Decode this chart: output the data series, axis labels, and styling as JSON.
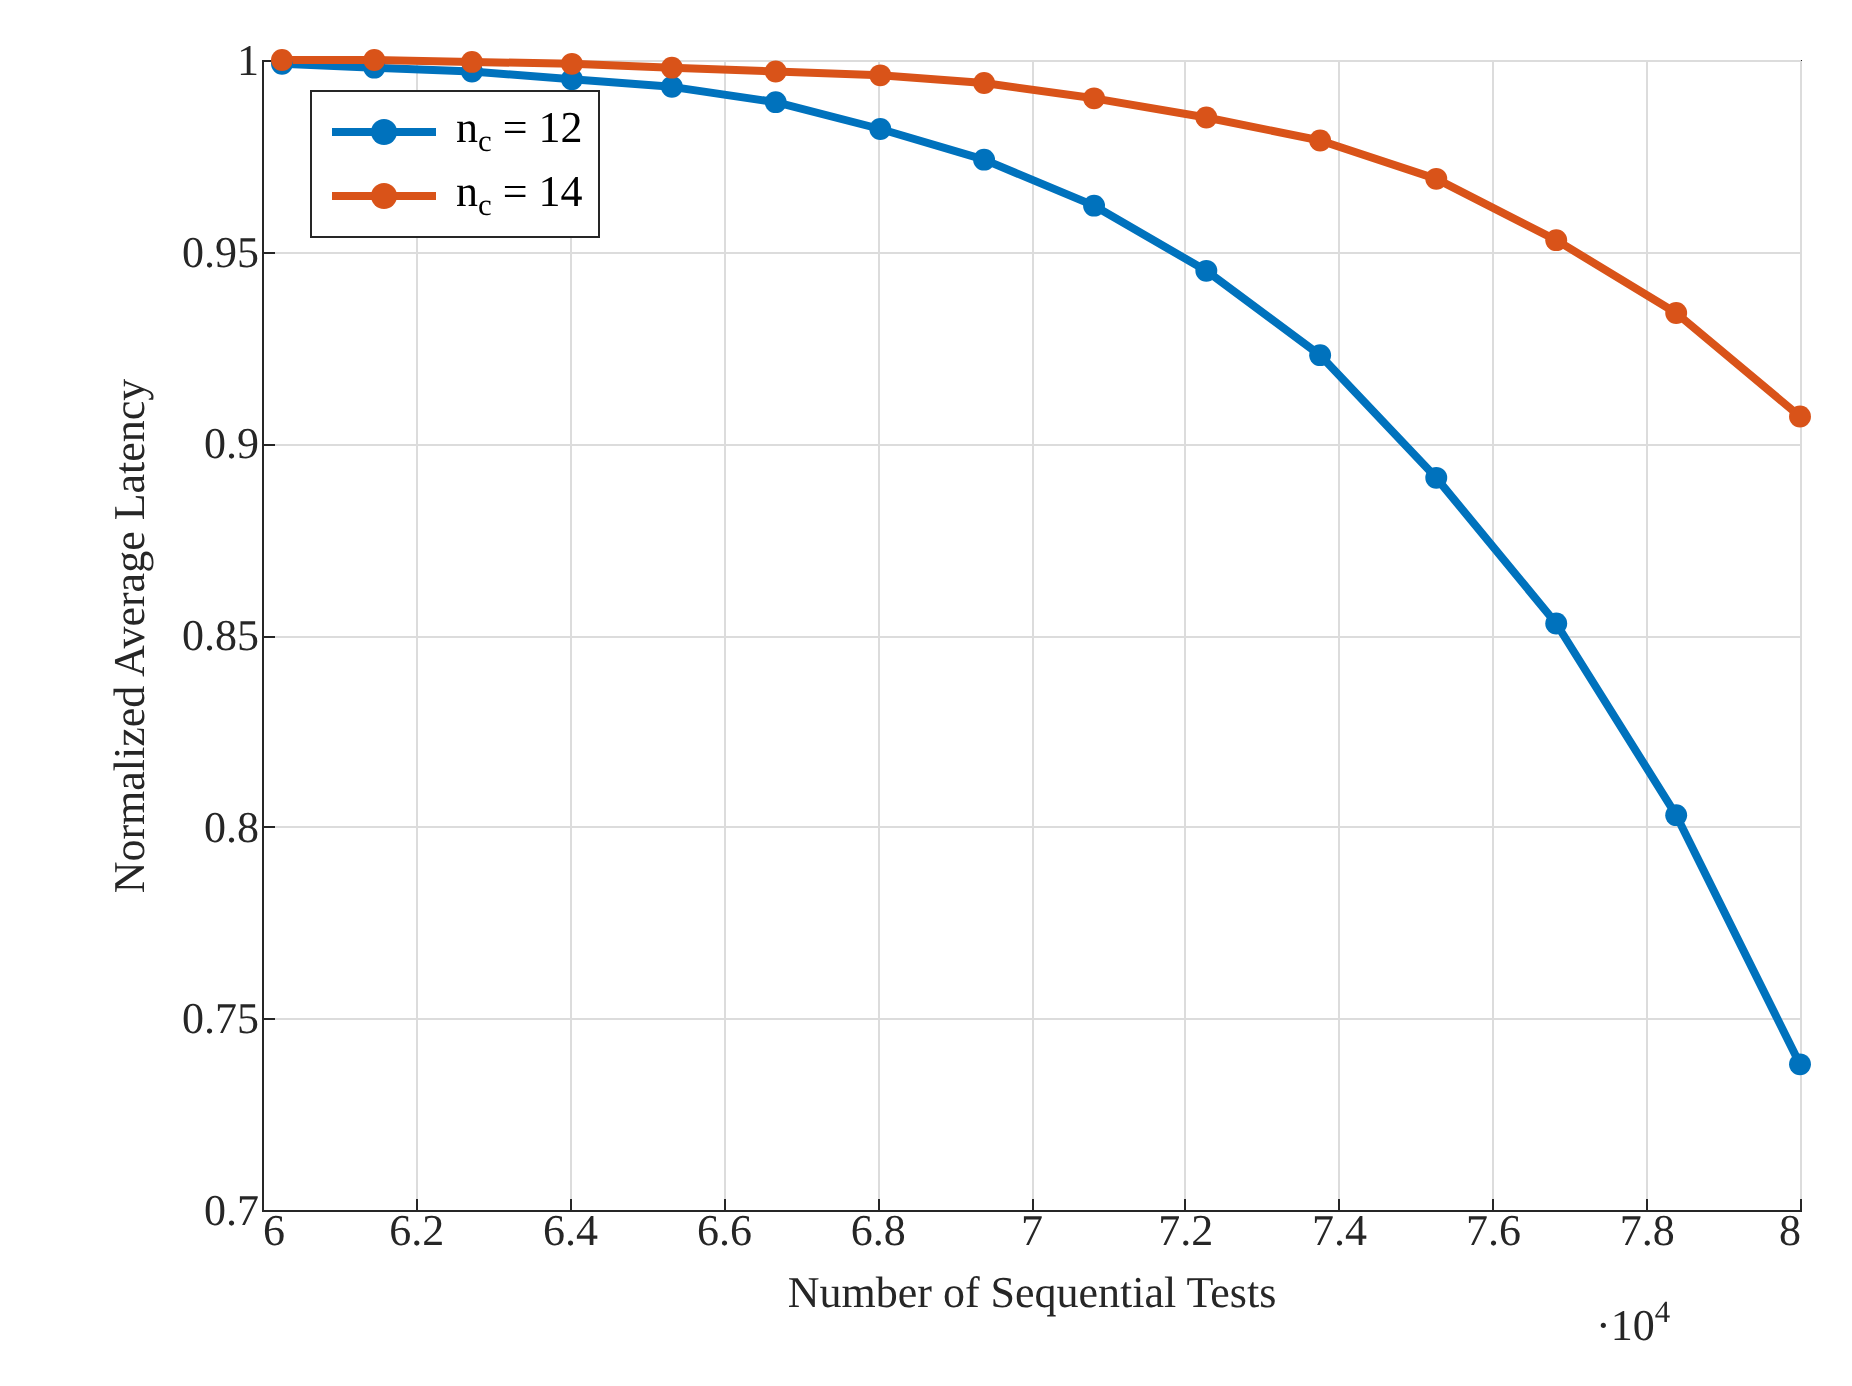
{
  "chart_data": {
    "type": "line",
    "xlabel": "Number of Sequential Tests",
    "ylabel": "Normalized Average Latency",
    "x": [
      6.026,
      6.146,
      6.273,
      6.403,
      6.533,
      6.668,
      6.804,
      6.939,
      7.082,
      7.228,
      7.376,
      7.527,
      7.683,
      7.839,
      8.0
    ],
    "series": [
      {
        "name": "n$_{c}$ = 12",
        "color": "#0072bd",
        "values": [
          0.999,
          0.998,
          0.997,
          0.995,
          0.993,
          0.989,
          0.982,
          0.974,
          0.962,
          0.945,
          0.923,
          0.891,
          0.853,
          0.803,
          0.738
        ]
      },
      {
        "name": "n$_{c}$ = 14",
        "color": "#d95319",
        "values": [
          1.0,
          1.0,
          0.9995,
          0.999,
          0.998,
          0.997,
          0.996,
          0.994,
          0.99,
          0.985,
          0.979,
          0.969,
          0.953,
          0.934,
          0.907
        ]
      }
    ],
    "xlim": [
      6,
      8
    ],
    "xticks": [
      6,
      6.2,
      6.4,
      6.6,
      6.8,
      7,
      7.2,
      7.4,
      7.6,
      7.8,
      8
    ],
    "ylim": [
      0.7,
      1
    ],
    "yticks": [
      0.7,
      0.75,
      0.8,
      0.85,
      0.9,
      0.95,
      1
    ],
    "grid": true,
    "legend": "top left",
    "marker": "circle",
    "line_style": "solid",
    "annotations": [
      "·10$^{4}$"
    ]
  }
}
